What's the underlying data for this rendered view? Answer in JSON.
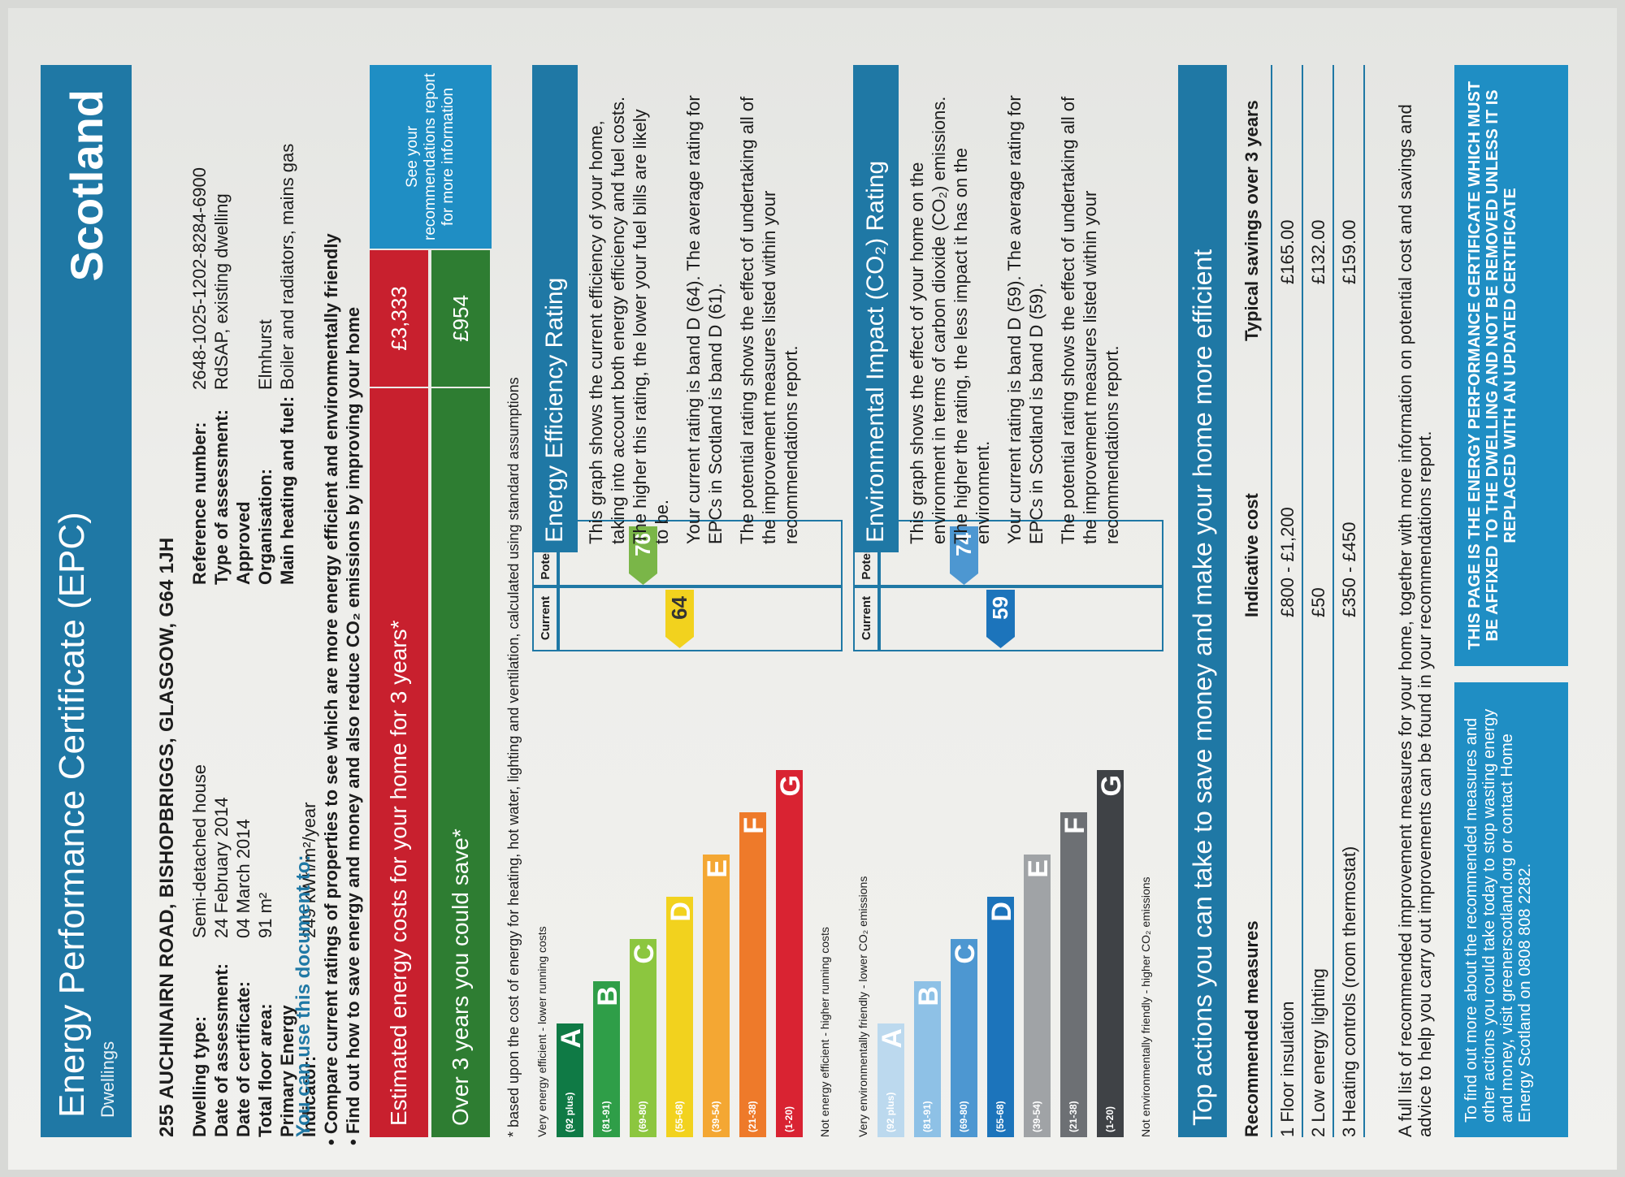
{
  "header": {
    "title": "Energy Performance Certificate (EPC)",
    "subtitle": "Dwellings",
    "country": "Scotland"
  },
  "address": "255 AUCHINAIRN ROAD, BISHOPBRIGGS, GLASGOW, G64 1JH",
  "details_left": [
    {
      "label": "Dwelling type:",
      "value": "Semi-detached house"
    },
    {
      "label": "Date of assessment:",
      "value": "24 February 2014"
    },
    {
      "label": "Date of certificate:",
      "value": "04 March 2014"
    },
    {
      "label": "Total floor area:",
      "value": "91 m²"
    },
    {
      "label": "Primary Energy Indicator:",
      "value": "249 kWh/m²/year"
    }
  ],
  "details_right": [
    {
      "label": "Reference number:",
      "value": "2648-1025-1202-8284-6900"
    },
    {
      "label": "Type of assessment:",
      "value": "RdSAP, existing dwelling"
    },
    {
      "label": "Approved Organisation:",
      "value": "Elmhurst"
    },
    {
      "label": "Main heating and fuel:",
      "value": "Boiler and radiators, mains gas"
    }
  ],
  "use_doc": {
    "heading": "You can use this document to:",
    "bullets": [
      "Compare current ratings of properties to see which are more energy efficient and environmentally friendly",
      "Find out how to save energy and money and also reduce CO₂ emissions by improving your home"
    ]
  },
  "costs": {
    "estimated_label": "Estimated energy costs for your home for 3 years*",
    "estimated_value": "£3,333",
    "save_label": "Over 3 years you could save*",
    "save_value": "£954",
    "see_rec": "See your recommendations report for more information",
    "footnote": "* based upon the cost of energy for heating, hot water, lighting and ventilation, calculated using standard assumptions",
    "estimated_color": "#c8202e",
    "save_color": "#2e7d32"
  },
  "energy_chart": {
    "top_note": "Very energy efficient - lower running costs",
    "bottom_note": "Not energy efficient - higher running costs",
    "col_current": "Current",
    "col_potential": "Potential",
    "current": "64",
    "potential": "76",
    "current_color": "#f2d21e",
    "potential_color": "#7ab648",
    "bands": [
      {
        "range": "(92 plus)",
        "letter": "A",
        "color": "#0f7a45"
      },
      {
        "range": "(81-91)",
        "letter": "B",
        "color": "#2f9e48"
      },
      {
        "range": "(69-80)",
        "letter": "C",
        "color": "#8cc63f"
      },
      {
        "range": "(55-68)",
        "letter": "D",
        "color": "#f2d21e"
      },
      {
        "range": "(39-54)",
        "letter": "E",
        "color": "#f4a733"
      },
      {
        "range": "(21-38)",
        "letter": "F",
        "color": "#ee7a2a"
      },
      {
        "range": "(1-20)",
        "letter": "G",
        "color": "#d92332"
      }
    ]
  },
  "env_chart": {
    "top_note": "Very environmentally friendly - lower CO₂ emissions",
    "bottom_note": "Not environmentally friendly - higher CO₂ emissions",
    "col_current": "Current",
    "col_potential": "Potential",
    "current": "59",
    "potential": "74",
    "current_color": "#1c74bb",
    "potential_color": "#4d97d1",
    "bands": [
      {
        "range": "(92 plus)",
        "letter": "A",
        "color": "#bcd9ee"
      },
      {
        "range": "(81-91)",
        "letter": "B",
        "color": "#8ec1e6"
      },
      {
        "range": "(69-80)",
        "letter": "C",
        "color": "#4d97d1"
      },
      {
        "range": "(55-68)",
        "letter": "D",
        "color": "#1c74bb"
      },
      {
        "range": "(39-54)",
        "letter": "E",
        "color": "#a0a3a6"
      },
      {
        "range": "(21-38)",
        "letter": "F",
        "color": "#6d7074"
      },
      {
        "range": "(1-20)",
        "letter": "G",
        "color": "#3f4246"
      }
    ]
  },
  "energy_section": {
    "title": "Energy Efficiency Rating",
    "p1": "This graph shows the current efficiency of your home, taking into account both energy efficiency and fuel costs. The higher this rating, the lower your fuel bills are likely to be.",
    "p2": "Your current rating is band D (64). The average rating for EPCs in Scotland is band D (61).",
    "p3": "The potential rating shows the effect of undertaking all of the improvement measures listed within your recommendations report."
  },
  "env_section": {
    "title": "Environmental Impact (CO₂) Rating",
    "p1": "This graph shows the effect of your home on the environment in terms of carbon dioxide (CO₂) emissions. The higher the rating, the less impact it has on the environment.",
    "p2": "Your current rating is band D (59). The average rating for EPCs in Scotland is band D (59).",
    "p3": "The potential rating shows the effect of undertaking all of the improvement measures listed within your recommendations report."
  },
  "actions": {
    "title": "Top actions you can take to save money and make your home more efficient",
    "headers": [
      "Recommended measures",
      "Indicative cost",
      "Typical savings over 3 years"
    ],
    "rows": [
      [
        "1 Floor insulation",
        "£800 - £1,200",
        "£165.00"
      ],
      [
        "2 Low energy lighting",
        "£50",
        "£132.00"
      ],
      [
        "3 Heating controls (room thermostat)",
        "£350 - £450",
        "£159.00"
      ]
    ],
    "full_list": "A full list of recommended improvement measures for your home, together with more information on potential cost and savings and advice to help you carry out improvements can be found in your recommendations report.",
    "info": "To find out more about the recommended measures and other actions you could take today to stop wasting energy and money, visit greenerscotland.org or contact Home Energy Scotland on 0808 808 2282.",
    "notice": "THIS PAGE IS THE ENERGY PERFORMANCE CERTIFICATE WHICH MUST BE AFFIXED TO THE DWELLING AND NOT BE REMOVED UNLESS IT IS REPLACED WITH AN UPDATED CERTIFICATE"
  }
}
